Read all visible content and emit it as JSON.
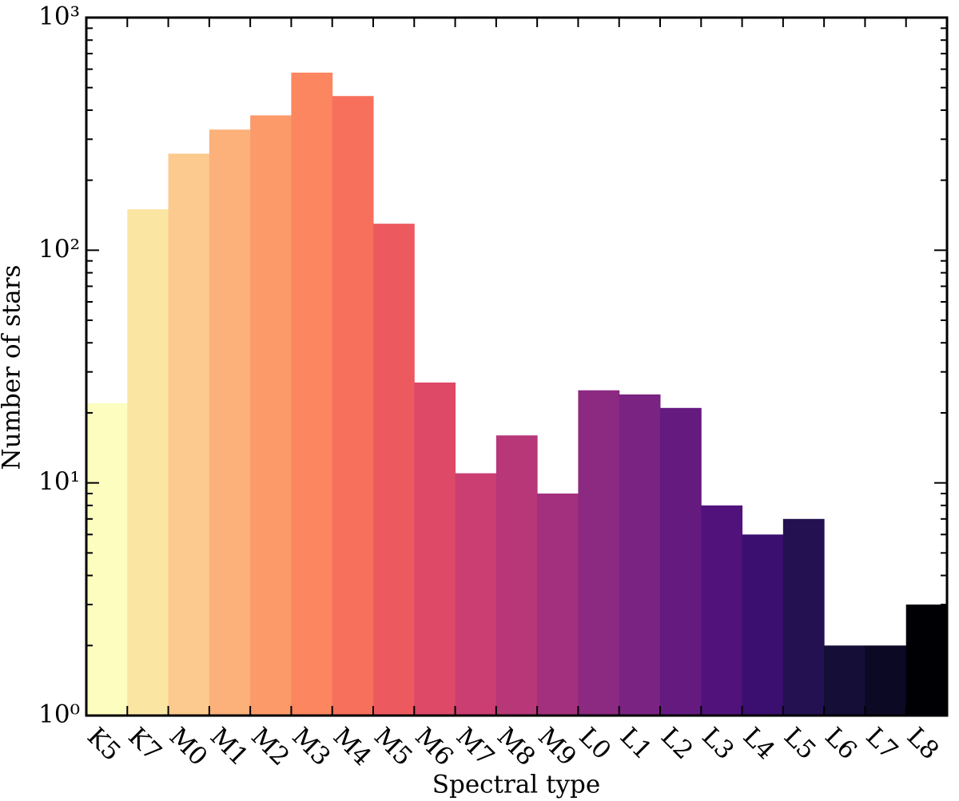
{
  "chart_data": {
    "type": "bar",
    "x_label": "Spectral type",
    "y_label": "Number of stars",
    "categories": [
      "K5",
      "K7",
      "M0",
      "M1",
      "M2",
      "M3",
      "M4",
      "M5",
      "M6",
      "M7",
      "M8",
      "M9",
      "L0",
      "L1",
      "L2",
      "L3",
      "L4",
      "L5",
      "L6",
      "L7",
      "L8"
    ],
    "values": [
      22,
      150,
      260,
      330,
      380,
      580,
      460,
      130,
      27,
      11,
      16,
      9,
      25,
      24,
      21,
      8,
      6,
      7,
      2,
      2,
      3
    ],
    "colors": [
      "#fcfdbf",
      "#fbe5a3",
      "#fcc98e",
      "#fcb07a",
      "#fc9a6a",
      "#fb8660",
      "#f7705c",
      "#ec5a5f",
      "#de4968",
      "#cb3e71",
      "#b73779",
      "#a3307e",
      "#8c2981",
      "#7a2382",
      "#651a80",
      "#52127c",
      "#3b0f70",
      "#231151",
      "#150e37",
      "#0b0924",
      "#000004"
    ],
    "y_scale": "log",
    "ylim": [
      1,
      1000
    ],
    "yticks": [
      {
        "value": 1,
        "label": "10⁰"
      },
      {
        "value": 10,
        "label": "10¹"
      },
      {
        "value": 100,
        "label": "10²"
      },
      {
        "value": 1000,
        "label": "10³"
      }
    ]
  }
}
